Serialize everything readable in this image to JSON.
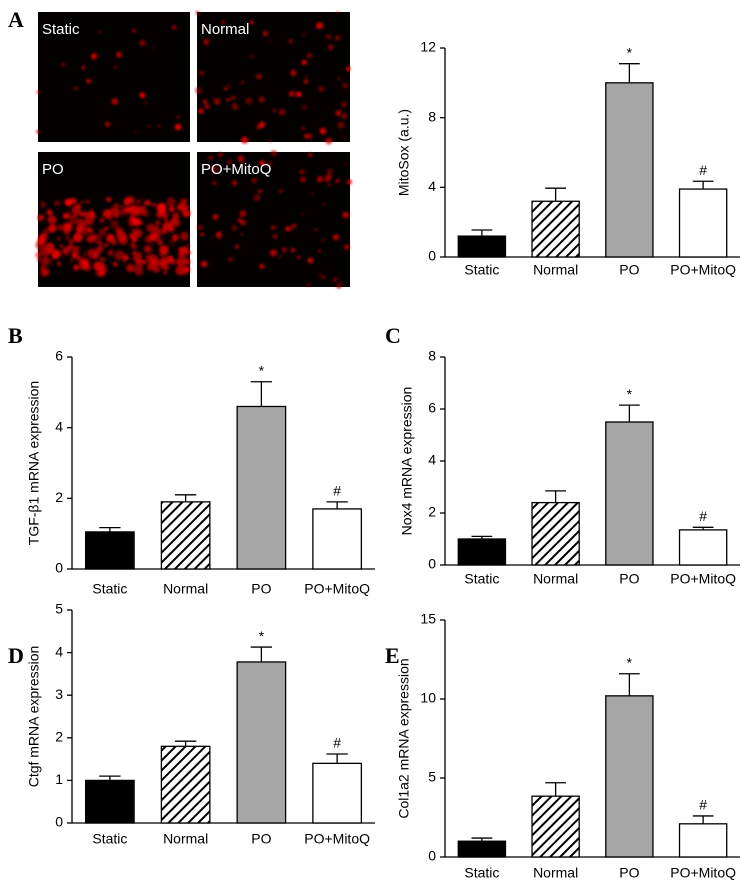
{
  "images": [
    {
      "label": "Static"
    },
    {
      "label": "Normal"
    },
    {
      "label": "PO"
    },
    {
      "label": "PO+MitoQ"
    }
  ],
  "chart_data": [
    {
      "type": "bar",
      "panel": "A",
      "ylabel": "MitoSox (a.u.)",
      "categories": [
        "Static",
        "Normal",
        "PO",
        "PO+MitoQ"
      ],
      "values": [
        1.2,
        3.2,
        10,
        3.9
      ],
      "errors": [
        0.35,
        0.75,
        1.1,
        0.45
      ],
      "value_annotations": [
        null,
        null,
        "*",
        "#"
      ],
      "colors": [
        "#000000",
        "#ffffff",
        "#a6a6a6",
        "#ffffff"
      ],
      "hatch": [
        false,
        true,
        false,
        false
      ],
      "ylim": [
        0,
        12
      ],
      "yticks": [
        0,
        4,
        8,
        12
      ]
    },
    {
      "type": "bar",
      "panel": "B",
      "ylabel": "TGF-β1 mRNA expression",
      "categories": [
        "Static",
        "Normal",
        "PO",
        "PO+MitoQ"
      ],
      "values": [
        1.05,
        1.9,
        4.6,
        1.7
      ],
      "errors": [
        0.12,
        0.2,
        0.7,
        0.2
      ],
      "value_annotations": [
        null,
        null,
        "*",
        "#"
      ],
      "colors": [
        "#000000",
        "#ffffff",
        "#a6a6a6",
        "#ffffff"
      ],
      "hatch": [
        false,
        true,
        false,
        false
      ],
      "ylim": [
        0,
        6
      ],
      "yticks": [
        0,
        2,
        4,
        6
      ]
    },
    {
      "type": "bar",
      "panel": "C",
      "ylabel": "Nox4 mRNA expression",
      "categories": [
        "Static",
        "Normal",
        "PO",
        "PO+MitoQ"
      ],
      "values": [
        1.0,
        2.4,
        5.5,
        1.35
      ],
      "errors": [
        0.1,
        0.45,
        0.65,
        0.1
      ],
      "value_annotations": [
        null,
        null,
        "*",
        "#"
      ],
      "colors": [
        "#000000",
        "#ffffff",
        "#a6a6a6",
        "#ffffff"
      ],
      "hatch": [
        false,
        true,
        false,
        false
      ],
      "ylim": [
        0,
        8
      ],
      "yticks": [
        0,
        2,
        4,
        6,
        8
      ]
    },
    {
      "type": "bar",
      "panel": "D",
      "ylabel": "Ctgf mRNA expression",
      "categories": [
        "Static",
        "Normal",
        "PO",
        "PO+MitoQ"
      ],
      "values": [
        1.0,
        1.8,
        3.78,
        1.4
      ],
      "errors": [
        0.1,
        0.12,
        0.35,
        0.22
      ],
      "value_annotations": [
        null,
        null,
        "*",
        "#"
      ],
      "colors": [
        "#000000",
        "#ffffff",
        "#a6a6a6",
        "#ffffff"
      ],
      "hatch": [
        false,
        true,
        false,
        false
      ],
      "ylim": [
        0,
        5
      ],
      "yticks": [
        0,
        1,
        2,
        3,
        4,
        5
      ]
    },
    {
      "type": "bar",
      "panel": "E",
      "ylabel": "Col1a2 mRNA expression",
      "categories": [
        "Static",
        "Normal",
        "PO",
        "PO+MitoQ"
      ],
      "values": [
        1.0,
        3.85,
        10.2,
        2.1
      ],
      "errors": [
        0.2,
        0.85,
        1.4,
        0.5
      ],
      "value_annotations": [
        null,
        null,
        "*",
        "#"
      ],
      "colors": [
        "#000000",
        "#ffffff",
        "#a6a6a6",
        "#ffffff"
      ],
      "hatch": [
        false,
        true,
        false,
        false
      ],
      "ylim": [
        0,
        15
      ],
      "yticks": [
        0,
        5,
        10,
        15
      ]
    }
  ]
}
